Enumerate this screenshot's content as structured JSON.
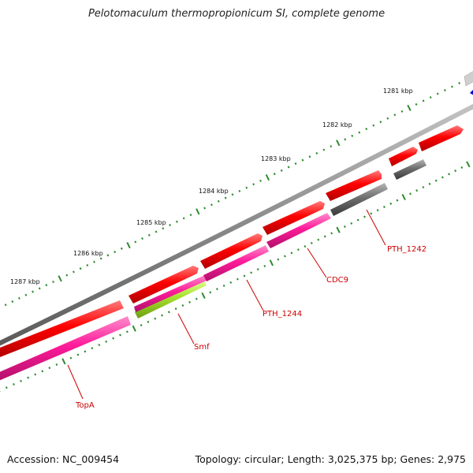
{
  "title": "Pelotomaculum thermopropionicum SI, complete genome",
  "accession": "Accession: NC_009454",
  "summary": "Topology: circular; Length: 3,025,375 bp; Genes: 2,975",
  "kbp_labels": [
    "1281 kbp",
    "1282 kbp",
    "1283 kbp",
    "1284 kbp",
    "1285 kbp",
    "1286 kbp",
    "1287 kbp"
  ],
  "gene_labels": [
    "PTH_1242",
    "CDC9",
    "PTH_1244",
    "Smf",
    "TopA"
  ],
  "colors": {
    "backbone": "#8a8a8a",
    "forward_gene": "#ff0000",
    "reverse_magenta": "#ff1a99",
    "reverse_green": "#a6e22e",
    "reverse_gray": "#6e6e6e",
    "tick": "#2e8b2e",
    "label": "#cc0000",
    "blue_feature": "#0000cc"
  }
}
